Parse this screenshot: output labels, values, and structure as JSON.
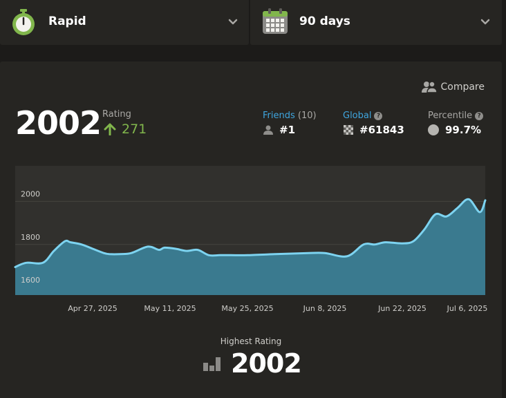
{
  "header": {
    "game_type": {
      "label": "Rapid",
      "icon": "stopwatch-icon"
    },
    "period": {
      "label": "90 days",
      "icon": "calendar-icon"
    }
  },
  "stats": {
    "compare_label": "Compare",
    "rating": {
      "value": "2002",
      "label": "Rating",
      "change": "271",
      "change_direction": "up"
    },
    "friends": {
      "label": "Friends",
      "count": "(10)",
      "value": "#1"
    },
    "global": {
      "label": "Global",
      "value": "#61843"
    },
    "percentile": {
      "label": "Percentile",
      "value": "99.7%"
    }
  },
  "highest": {
    "label": "Highest Rating",
    "value": "2002"
  },
  "colors": {
    "accent_green": "#81b64c",
    "link_blue": "#3fa6e0",
    "line": "#7dd3f0",
    "area": "#3a7a8f"
  },
  "chart_data": {
    "type": "area",
    "title": "",
    "xlabel": "",
    "ylabel": "",
    "x_tick_labels": [
      "Apr 27, 2025",
      "May 11, 2025",
      "May 25, 2025",
      "Jun 8, 2025",
      "Jun 22, 2025",
      "Jul 6, 2025"
    ],
    "y_ticks": [
      1600,
      1800,
      2000
    ],
    "y_tick_labels": [
      "1600",
      "1800",
      "2000"
    ],
    "ylim": [
      1565,
      2165
    ],
    "xlim": [
      "2025-04-13",
      "2025-07-07"
    ],
    "grid": true,
    "series": [
      {
        "x": [
          "2025-04-13",
          "2025-04-15",
          "2025-04-18",
          "2025-04-20",
          "2025-04-22",
          "2025-04-23",
          "2025-04-25",
          "2025-04-27",
          "2025-04-29",
          "2025-04-30",
          "2025-05-02",
          "2025-05-04",
          "2025-05-07",
          "2025-05-09",
          "2025-05-10",
          "2025-05-12",
          "2025-05-14",
          "2025-05-16",
          "2025-05-18",
          "2025-05-20",
          "2025-05-22",
          "2025-05-25",
          "2025-05-30",
          "2025-06-05",
          "2025-06-08",
          "2025-06-12",
          "2025-06-15",
          "2025-06-17",
          "2025-06-19",
          "2025-06-22",
          "2025-06-24",
          "2025-06-26",
          "2025-06-28",
          "2025-06-30",
          "2025-07-02",
          "2025-07-04",
          "2025-07-06",
          "2025-07-07"
        ],
        "y": [
          1695,
          1715,
          1715,
          1770,
          1815,
          1810,
          1800,
          1780,
          1760,
          1755,
          1755,
          1760,
          1790,
          1775,
          1785,
          1780,
          1770,
          1775,
          1750,
          1750,
          1750,
          1750,
          1755,
          1760,
          1760,
          1745,
          1800,
          1800,
          1810,
          1805,
          1815,
          1870,
          1940,
          1930,
          1970,
          2010,
          1950,
          2005
        ]
      }
    ]
  }
}
